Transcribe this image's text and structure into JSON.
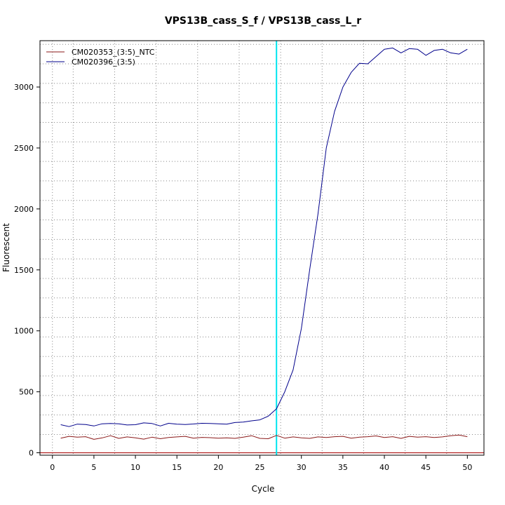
{
  "chart_data": {
    "type": "line",
    "title": "VPS13B_cass_S_f / VPS13B_cass_L_r",
    "xlabel": "Cycle",
    "ylabel": "Fluorescent",
    "xlim": [
      -1.5,
      52
    ],
    "ylim": [
      -20,
      3380
    ],
    "x_ticks": [
      0,
      5,
      10,
      15,
      20,
      25,
      30,
      35,
      40,
      45,
      50
    ],
    "y_ticks": [
      0,
      500,
      1000,
      1500,
      2000,
      2500,
      3000
    ],
    "grid": true,
    "grid_x": [
      0,
      2.5,
      7.5,
      12.5,
      17.5,
      22.5,
      27.5,
      32.5,
      37.5,
      42.5,
      47.5,
      52.5
    ],
    "grid_y": [
      0,
      150,
      310,
      470,
      630,
      790,
      950,
      1110,
      1270,
      1430,
      1590,
      1750,
      1910,
      2070,
      2230,
      2390,
      2550,
      2710,
      2870,
      3030,
      3190,
      3350
    ],
    "legend_position": "top-left",
    "threshold": {
      "x": 27,
      "color": "#00e5ee"
    },
    "baseline": {
      "y": 0,
      "color": "#b22222"
    },
    "x": [
      1,
      2,
      3,
      4,
      5,
      6,
      7,
      8,
      9,
      10,
      11,
      12,
      13,
      14,
      15,
      16,
      17,
      18,
      19,
      20,
      21,
      22,
      23,
      24,
      25,
      26,
      27,
      28,
      29,
      30,
      31,
      32,
      33,
      34,
      35,
      36,
      37,
      38,
      39,
      40,
      41,
      42,
      43,
      44,
      45,
      46,
      47,
      48,
      49,
      50
    ],
    "series": [
      {
        "name": "CM020353_(3:5)_NTC",
        "color": "#8b1a1a",
        "values": [
          120,
          135,
          128,
          132,
          110,
          122,
          140,
          118,
          130,
          122,
          112,
          128,
          115,
          125,
          130,
          135,
          120,
          126,
          124,
          120,
          122,
          118,
          128,
          140,
          118,
          115,
          142,
          120,
          130,
          122,
          118,
          130,
          125,
          132,
          135,
          120,
          128,
          132,
          138,
          125,
          132,
          118,
          135,
          128,
          132,
          125,
          130,
          140,
          145,
          132
        ]
      },
      {
        "name": "CM020396_(3:5)",
        "color": "#00008b",
        "values": [
          230,
          215,
          235,
          232,
          220,
          238,
          240,
          238,
          228,
          230,
          245,
          240,
          220,
          242,
          235,
          232,
          236,
          242,
          240,
          238,
          235,
          248,
          252,
          262,
          270,
          300,
          360,
          500,
          680,
          1020,
          1500,
          1960,
          2500,
          2800,
          3000,
          3120,
          3195,
          3190,
          3250,
          3310,
          3320,
          3280,
          3315,
          3310,
          3260,
          3300,
          3310,
          3280,
          3270,
          3310
        ]
      }
    ]
  }
}
